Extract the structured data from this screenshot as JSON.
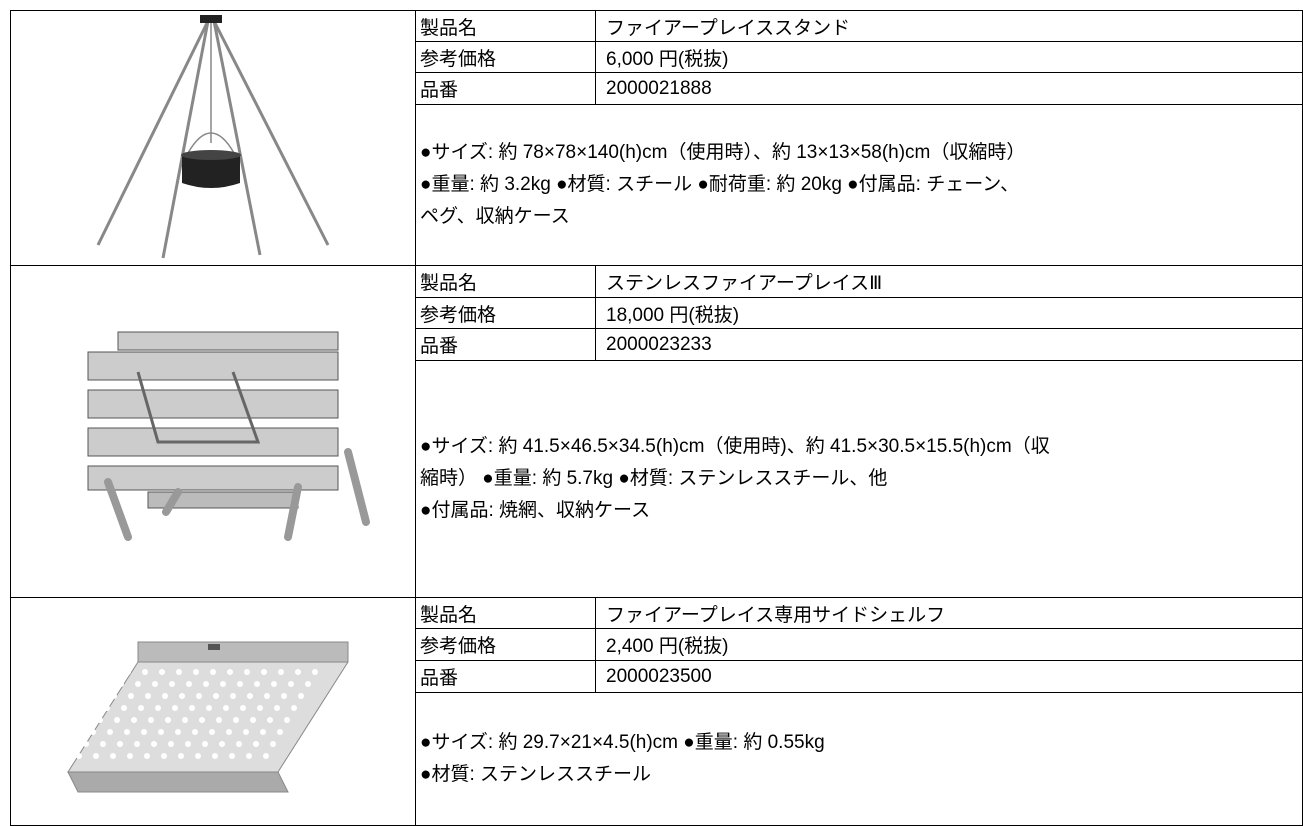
{
  "products": [
    {
      "rows": [
        [
          "製品名",
          "ファイアープレイススタンド"
        ],
        [
          "参考価格",
          "6,000 円(税抜)"
        ],
        [
          "品番",
          "2000021888"
        ]
      ],
      "description": [
        "●サイズ: 約 78×78×140(h)cm（使用時）、約 13×13×58(h)cm（収縮時）",
        "●重量: 約 3.2kg ●材質: スチール ●耐荷重: 約 20kg ●付属品: チェーン、",
        "ペグ、収納ケース"
      ]
    },
    {
      "rows": [
        [
          "製品名",
          "ステンレスファイアープレイスⅢ"
        ],
        [
          "参考価格",
          "18,000 円(税抜)"
        ],
        [
          "品番",
          "2000023233"
        ]
      ],
      "description": [
        "●サイズ: 約 41.5×46.5×34.5(h)cm（使用時)、約 41.5×30.5×15.5(h)cm（収",
        "縮時） ●重量: 約 5.7kg ●材質: ステンレススチール、他",
        "●付属品: 焼網、収納ケース"
      ]
    },
    {
      "rows": [
        [
          "製品名",
          "ファイアープレイス専用サイドシェルフ"
        ],
        [
          "参考価格",
          "2,400 円(税抜)"
        ],
        [
          "品番",
          "2000023500"
        ]
      ],
      "description": [
        "●サイズ: 約 29.7×21×4.5(h)cm ●重量: 約 0.55kg",
        "●材質: ステンレススチール"
      ]
    }
  ]
}
